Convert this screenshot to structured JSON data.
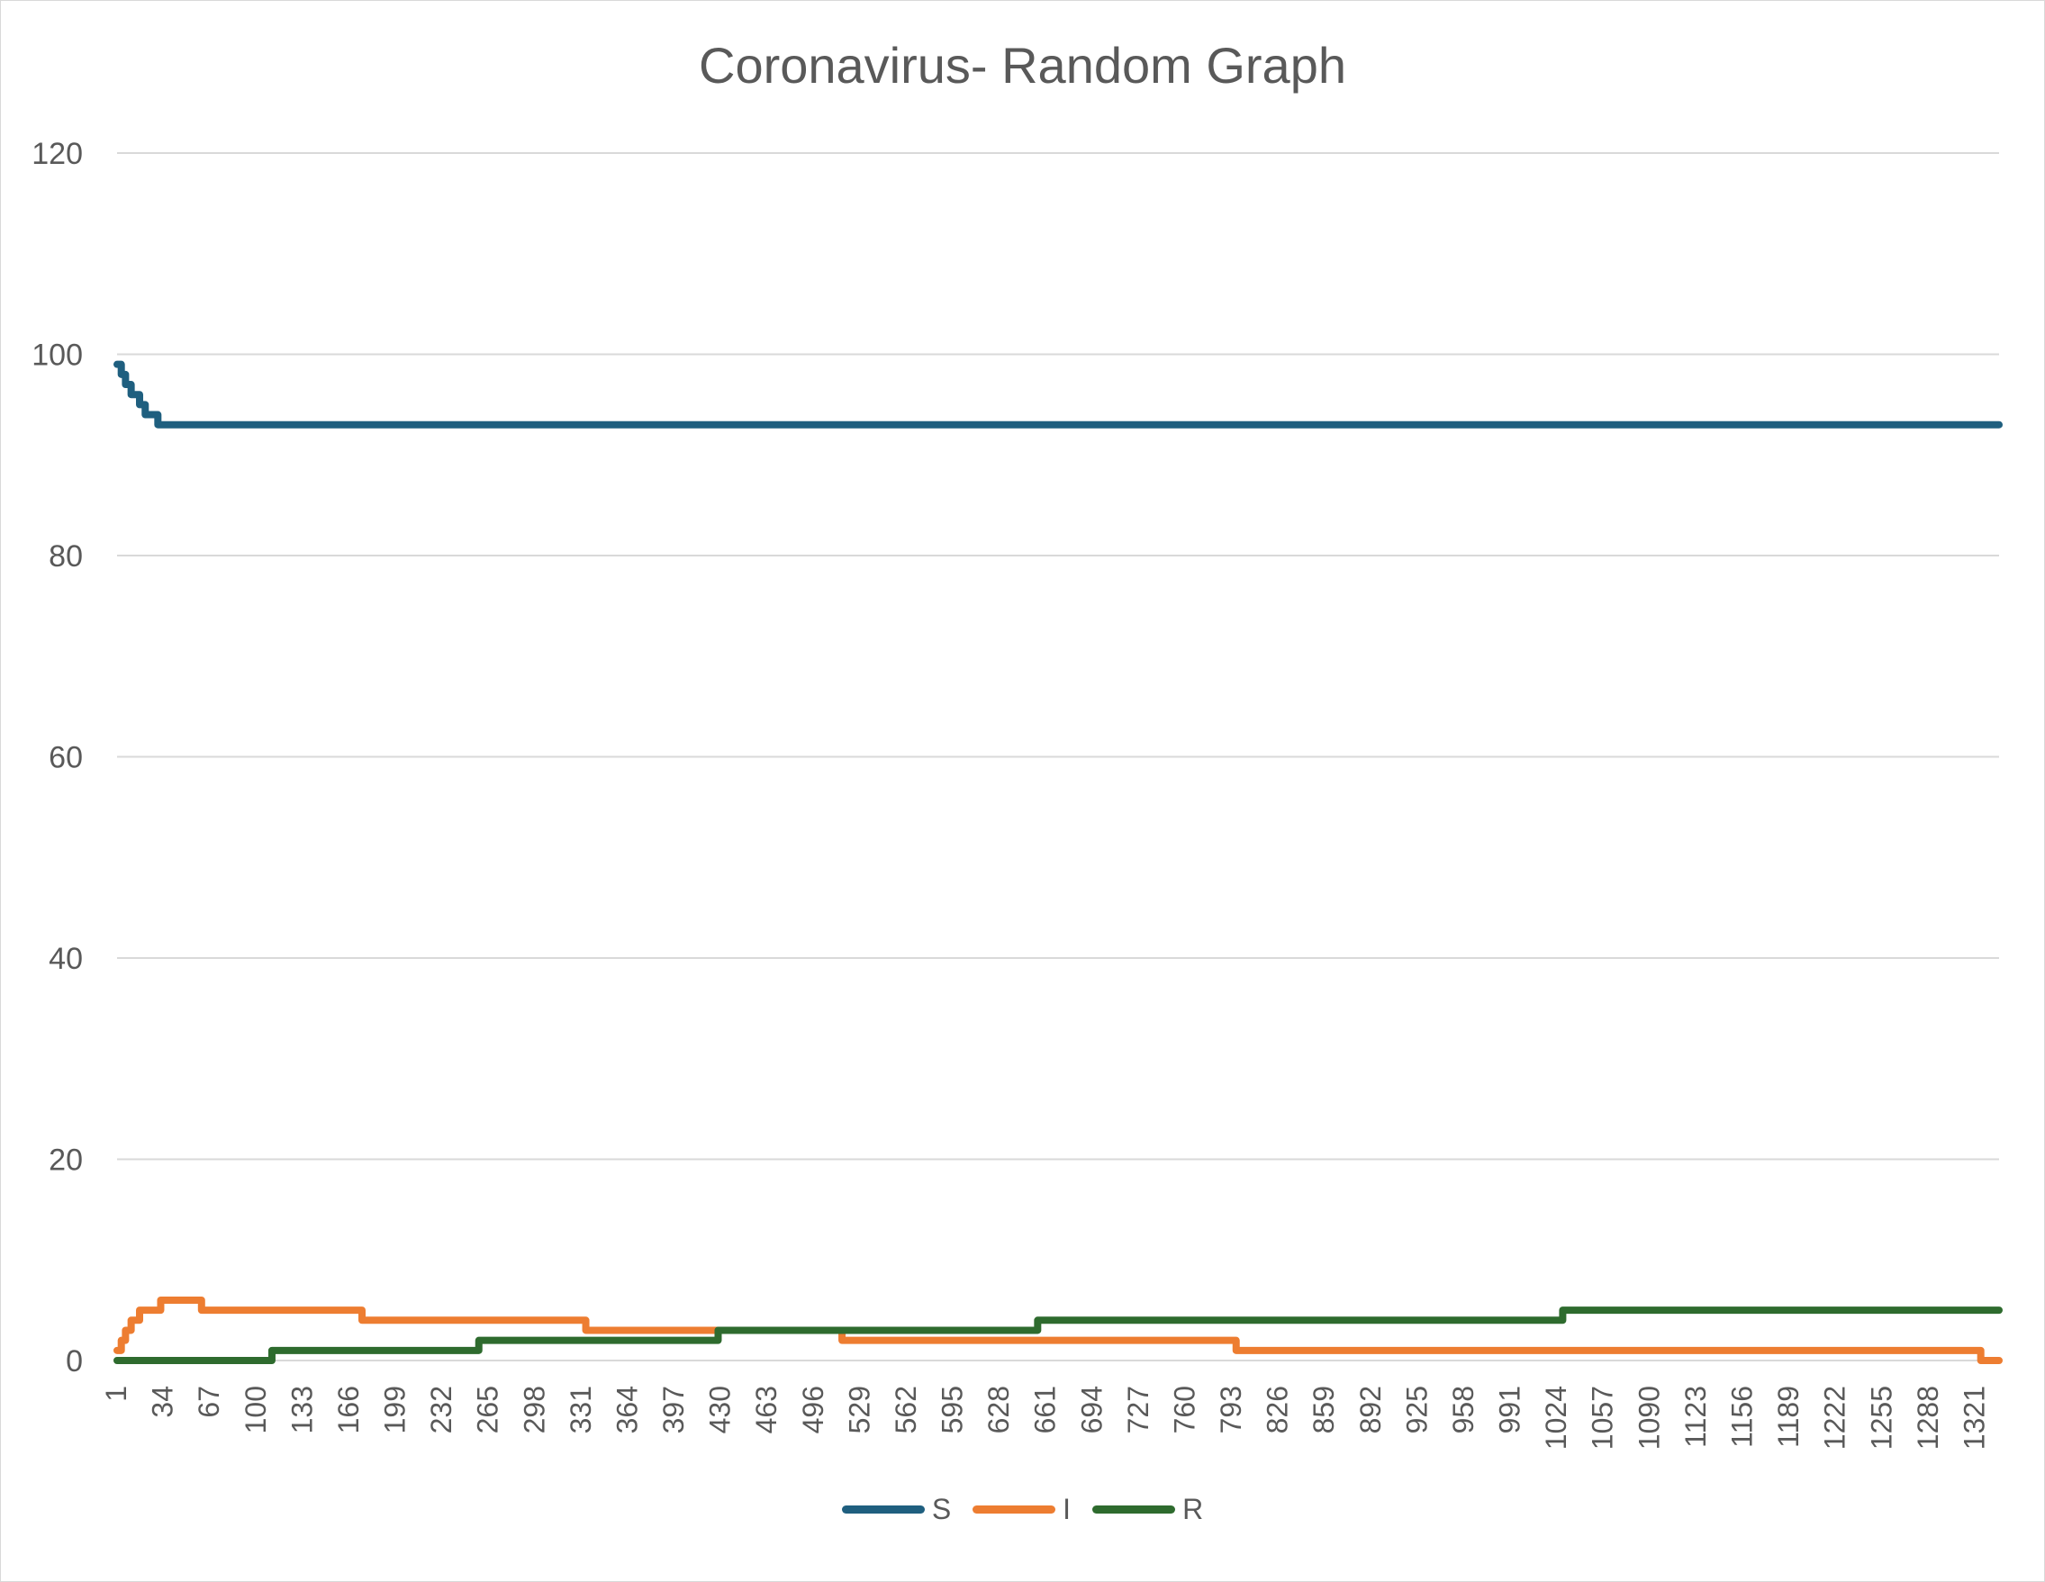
{
  "chart_data": {
    "type": "line",
    "title": "Coronavirus- Random Graph",
    "xlabel": "",
    "ylabel": "",
    "ylim": [
      0,
      120
    ],
    "xlim": [
      1,
      1338
    ],
    "y_ticks": [
      0,
      20,
      40,
      60,
      80,
      100,
      120
    ],
    "x_tick_labels": [
      1,
      34,
      67,
      100,
      133,
      166,
      199,
      232,
      265,
      298,
      331,
      364,
      397,
      430,
      463,
      496,
      529,
      562,
      595,
      628,
      661,
      694,
      727,
      760,
      793,
      826,
      859,
      892,
      925,
      958,
      991,
      1024,
      1057,
      1090,
      1123,
      1156,
      1189,
      1222,
      1255,
      1288,
      1321
    ],
    "grid": "horizontal",
    "legend_position": "bottom",
    "series": [
      {
        "name": "S",
        "color": "#1f5f7f",
        "points": [
          [
            1,
            99
          ],
          [
            4,
            98
          ],
          [
            7,
            97
          ],
          [
            11,
            96
          ],
          [
            17,
            95
          ],
          [
            21,
            94
          ],
          [
            30,
            93
          ],
          [
            1338,
            93
          ]
        ]
      },
      {
        "name": "I",
        "color": "#ed7d31",
        "points": [
          [
            1,
            1
          ],
          [
            4,
            2
          ],
          [
            7,
            3
          ],
          [
            11,
            4
          ],
          [
            17,
            5
          ],
          [
            32,
            6
          ],
          [
            61,
            5
          ],
          [
            175,
            4
          ],
          [
            334,
            3
          ],
          [
            516,
            2
          ],
          [
            796,
            1
          ],
          [
            1325,
            0
          ],
          [
            1338,
            0
          ]
        ]
      },
      {
        "name": "R",
        "color": "#2e6b2e",
        "points": [
          [
            1,
            0
          ],
          [
            111,
            1
          ],
          [
            258,
            2
          ],
          [
            428,
            3
          ],
          [
            655,
            4
          ],
          [
            1028,
            5
          ],
          [
            1338,
            5
          ]
        ]
      }
    ]
  }
}
